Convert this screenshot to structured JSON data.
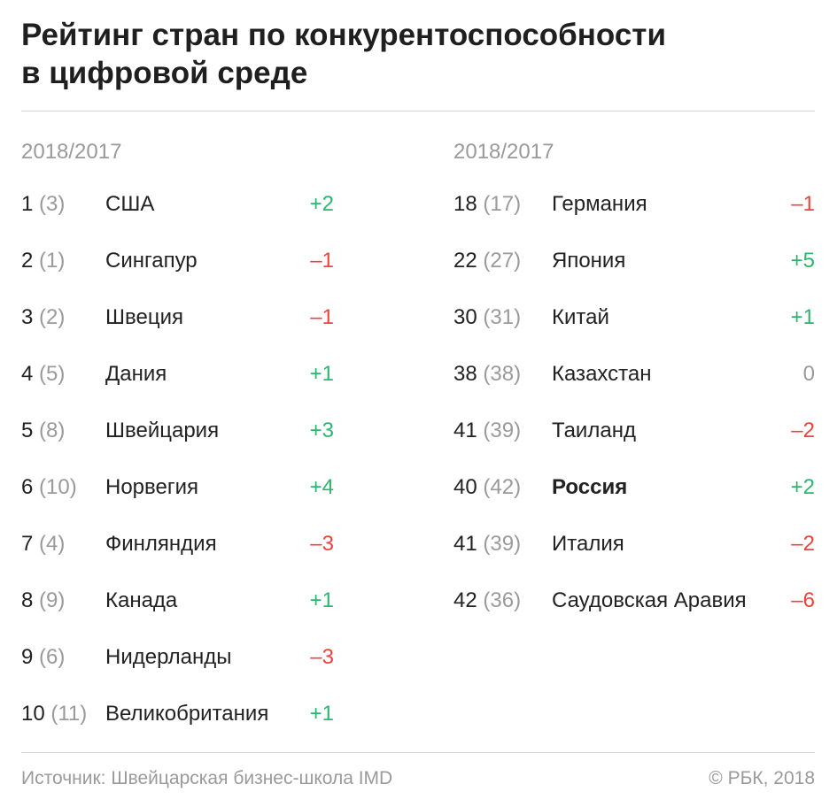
{
  "title_lines": [
    "Рейтинг стран по конкурентоспособности",
    "в цифровой среде"
  ],
  "column_header": "2018/2017",
  "colors": {
    "positive": "#2fb56f",
    "negative": "#e8453c",
    "neutral": "#9a9a9a"
  },
  "chart_data": {
    "type": "table",
    "title": "Рейтинг стран по конкурентоспособности в цифровой среде",
    "columns": [
      "2018/2017",
      "",
      ""
    ],
    "groups": [
      {
        "header": "2018/2017",
        "rows": [
          {
            "rank_2018": "1",
            "rank_2017": "(3)",
            "country": "США",
            "change": "+2",
            "direction": "up"
          },
          {
            "rank_2018": "2",
            "rank_2017": "(1)",
            "country": "Сингапур",
            "change": "–1",
            "direction": "down"
          },
          {
            "rank_2018": "3",
            "rank_2017": "(2)",
            "country": "Швеция",
            "change": "–1",
            "direction": "down"
          },
          {
            "rank_2018": "4",
            "rank_2017": "(5)",
            "country": "Дания",
            "change": "+1",
            "direction": "up"
          },
          {
            "rank_2018": "5",
            "rank_2017": "(8)",
            "country": "Швейцария",
            "change": "+3",
            "direction": "up"
          },
          {
            "rank_2018": "6",
            "rank_2017": "(10)",
            "country": "Норвегия",
            "change": "+4",
            "direction": "up"
          },
          {
            "rank_2018": "7",
            "rank_2017": "(4)",
            "country": "Финляндия",
            "change": "–3",
            "direction": "down"
          },
          {
            "rank_2018": "8",
            "rank_2017": "(9)",
            "country": "Канада",
            "change": "+1",
            "direction": "up"
          },
          {
            "rank_2018": "9",
            "rank_2017": "(6)",
            "country": "Нидерланды",
            "change": "–3",
            "direction": "down"
          },
          {
            "rank_2018": "10",
            "rank_2017": "(11)",
            "country": "Великобритания",
            "change": "+1",
            "direction": "up"
          }
        ]
      },
      {
        "header": "2018/2017",
        "rows": [
          {
            "rank_2018": "18",
            "rank_2017": "(17)",
            "country": "Германия",
            "change": "–1",
            "direction": "down"
          },
          {
            "rank_2018": "22",
            "rank_2017": "(27)",
            "country": "Япония",
            "change": "+5",
            "direction": "up"
          },
          {
            "rank_2018": "30",
            "rank_2017": "(31)",
            "country": "Китай",
            "change": "+1",
            "direction": "up"
          },
          {
            "rank_2018": "38",
            "rank_2017": "(38)",
            "country": "Казахстан",
            "change": "0",
            "direction": "same"
          },
          {
            "rank_2018": "41",
            "rank_2017": "(39)",
            "country": "Таиланд",
            "change": "–2",
            "direction": "down"
          },
          {
            "rank_2018": "40",
            "rank_2017": "(42)",
            "country": "Россия",
            "change": "+2",
            "direction": "up",
            "highlight": true
          },
          {
            "rank_2018": "41",
            "rank_2017": "(39)",
            "country": "Италия",
            "change": "–2",
            "direction": "down"
          },
          {
            "rank_2018": "42",
            "rank_2017": "(36)",
            "country": "Саудовская Аравия",
            "change": "–6",
            "direction": "down"
          }
        ]
      }
    ]
  },
  "footer": {
    "source": "Источник: Швейцарская бизнес-школа IMD",
    "credit": "© РБК, 2018"
  }
}
